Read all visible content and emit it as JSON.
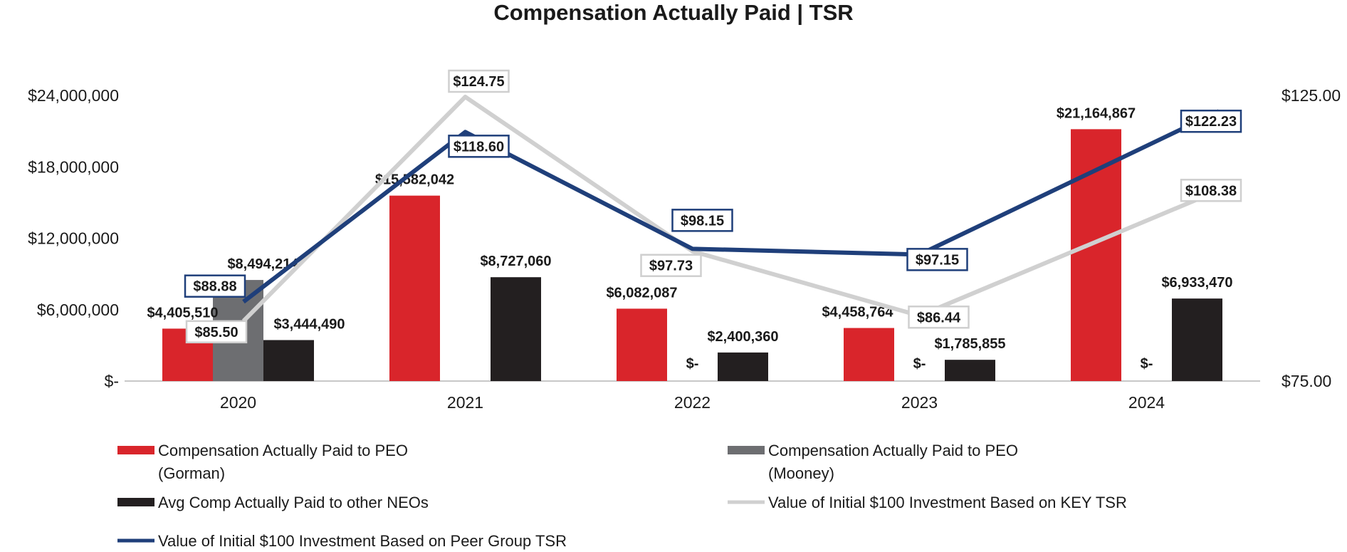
{
  "chart_data": {
    "type": "bar",
    "title": "Compensation Actually Paid | TSR",
    "categories": [
      "2020",
      "2021",
      "2022",
      "2023",
      "2024"
    ],
    "y_left": {
      "range": [
        0,
        24000000
      ],
      "ticks": [
        0,
        6000000,
        12000000,
        18000000,
        24000000
      ],
      "tick_labels": [
        "$-",
        "$6,000,000",
        "$12,000,000",
        "$18,000,000",
        "$24,000,000"
      ]
    },
    "y_right": {
      "range": [
        75,
        125
      ],
      "ticks": [
        75,
        125
      ],
      "tick_labels": [
        "$75.00",
        "$125.00"
      ]
    },
    "bar_series": [
      {
        "name": "Compensation Actually Paid to PEO (Gorman)",
        "legend_lines": [
          "Compensation Actually Paid to PEO",
          "(Gorman)"
        ],
        "color": "#d9252b",
        "values": [
          4405510,
          15582042,
          6082087,
          4458764,
          21164867
        ],
        "labels": [
          "$4,405,510",
          "$15,582,042",
          "$6,082,087",
          "$4,458,764",
          "$21,164,867"
        ]
      },
      {
        "name": "Compensation Actually Paid to PEO (Mooney)",
        "legend_lines": [
          "Compensation Actually Paid to PEO",
          "(Mooney)"
        ],
        "color": "#6d6e71",
        "values": [
          8494214,
          0,
          0,
          0,
          0
        ],
        "labels": [
          "$8,494,214",
          "",
          "$-",
          "$-",
          "$-"
        ]
      },
      {
        "name": "Avg Comp Actually Paid to other NEOs",
        "legend_lines": [
          "Avg Comp Actually Paid to other NEOs"
        ],
        "color": "#231f20",
        "values": [
          3444490,
          8727060,
          2400360,
          1785855,
          6933470
        ],
        "labels": [
          "$3,444,490",
          "$8,727,060",
          "$2,400,360",
          "$1,785,855",
          "$6,933,470"
        ]
      }
    ],
    "line_series": [
      {
        "name": "Value of Initial $100 Investment Based on KEY TSR",
        "legend_lines": [
          "Value of Initial $100 Investment Based on KEY TSR"
        ],
        "color": "#d0d0d0",
        "values": [
          85.5,
          124.75,
          97.73,
          86.44,
          108.38
        ],
        "labels": [
          "$85.50",
          "$124.75",
          "$97.73",
          "$86.44",
          "$108.38"
        ]
      },
      {
        "name": "Value of Initial $100 Investment Based on Peer Group TSR",
        "legend_lines": [
          "Value of Initial $100 Investment Based on Peer Group TSR"
        ],
        "color": "#1f3f7a",
        "values": [
          88.88,
          118.6,
          98.15,
          97.15,
          122.23
        ],
        "labels": [
          "$88.88",
          "$118.60",
          "$98.15",
          "$97.15",
          "$122.23"
        ]
      }
    ],
    "grid": false,
    "legend_position": "bottom"
  }
}
